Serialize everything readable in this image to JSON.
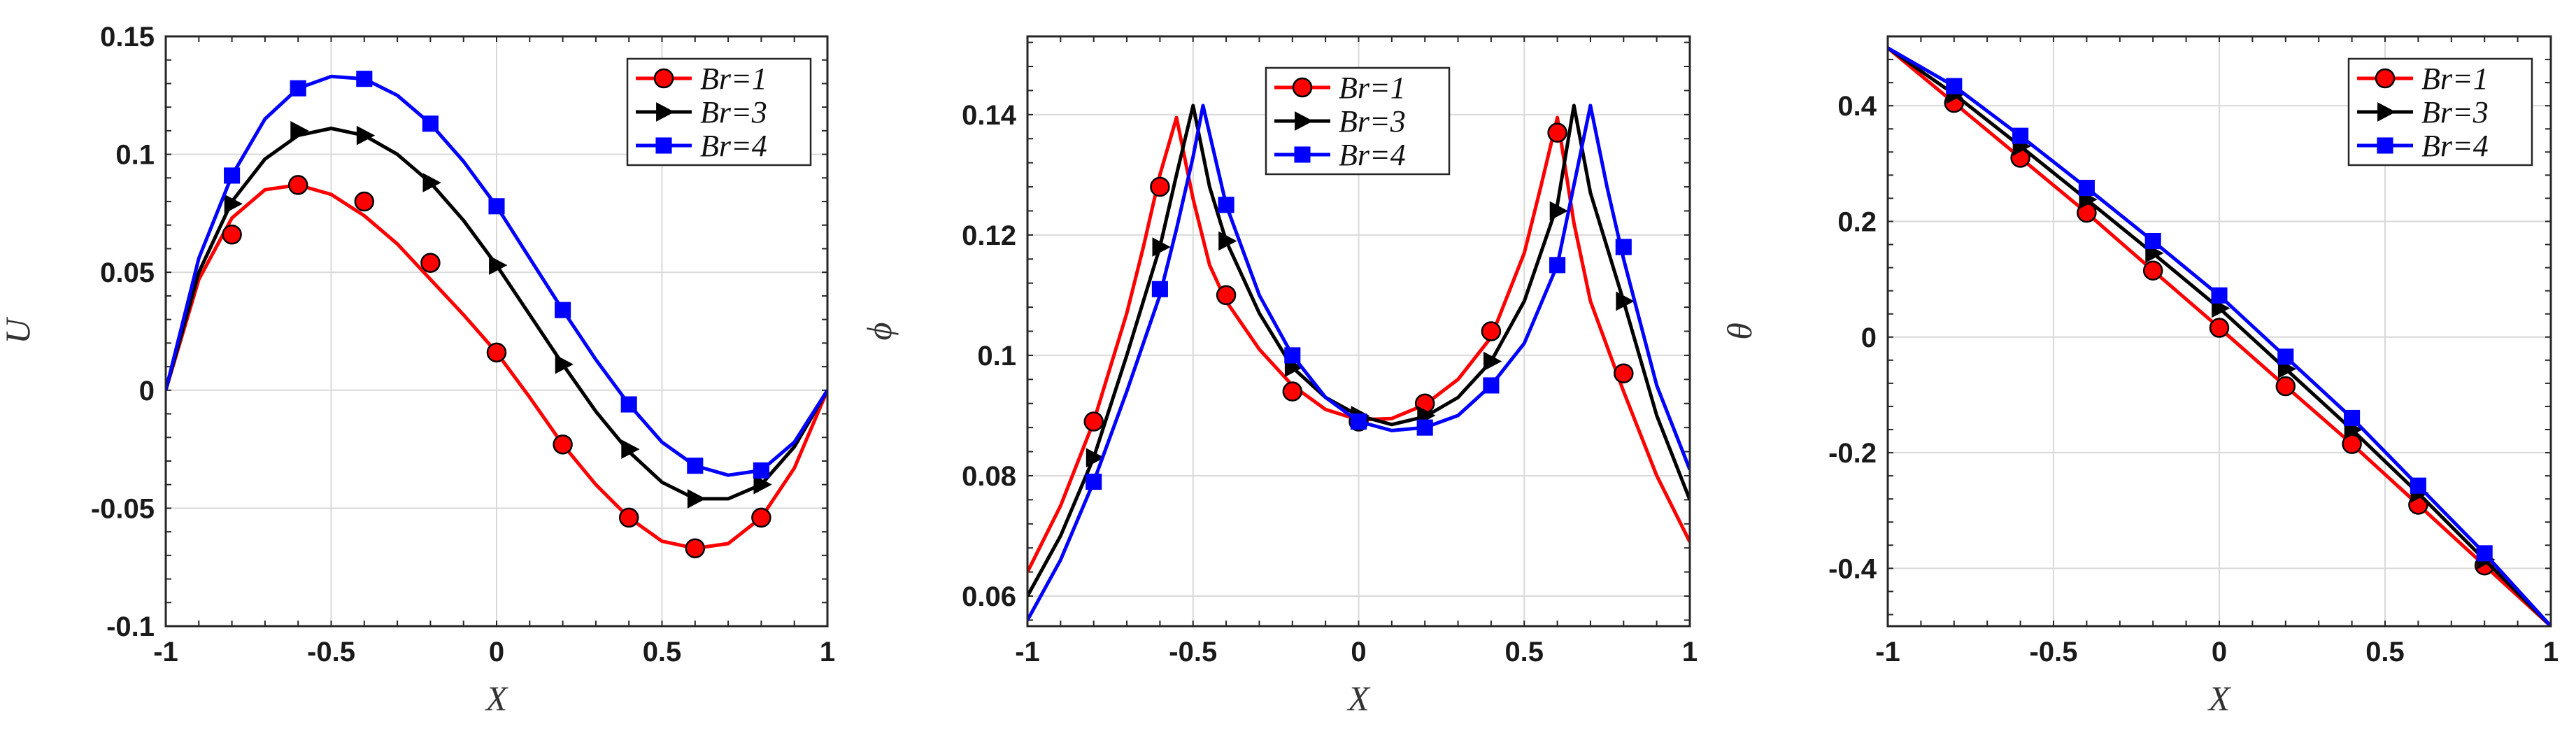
{
  "colors": {
    "Br1": "#ff0000",
    "Br3": "#000000",
    "Br4": "#0000ff"
  },
  "chart_data": [
    {
      "type": "line",
      "xlabel": "X",
      "ylabel": "U",
      "xlim": [
        -1,
        1
      ],
      "ylim": [
        -0.1,
        0.15
      ],
      "xticks": [
        -1,
        -0.5,
        0,
        0.5,
        1
      ],
      "xtick_labels": [
        "-1",
        "-0.5",
        "0",
        "0.5",
        "1"
      ],
      "yticks": [
        -0.1,
        -0.05,
        0,
        0.05,
        0.1,
        0.15
      ],
      "ytick_labels": [
        "-0.1",
        "-0.05",
        "0",
        "0.05",
        "0.1",
        "0.15"
      ],
      "grid": true,
      "legend_position": "top-right",
      "series": [
        {
          "name": "Br=1",
          "marker": "circle",
          "color": "#ff0000",
          "line_x": [
            -1,
            -0.9,
            -0.8,
            -0.7,
            -0.6,
            -0.5,
            -0.4,
            -0.3,
            -0.2,
            -0.1,
            0,
            0.1,
            0.2,
            0.3,
            0.4,
            0.5,
            0.6,
            0.7,
            0.8,
            0.9,
            1
          ],
          "line_y": [
            0,
            0.047,
            0.073,
            0.085,
            0.087,
            0.083,
            0.074,
            0.062,
            0.047,
            0.032,
            0.016,
            -0.003,
            -0.023,
            -0.04,
            -0.054,
            -0.064,
            -0.067,
            -0.065,
            -0.054,
            -0.033,
            0
          ],
          "marker_x": [
            -0.8,
            -0.6,
            -0.4,
            -0.2,
            0,
            0.2,
            0.4,
            0.6,
            0.8
          ],
          "marker_y": [
            0.066,
            0.087,
            0.08,
            0.054,
            0.016,
            -0.023,
            -0.054,
            -0.067,
            -0.054
          ]
        },
        {
          "name": "Br=3",
          "marker": "triangle-right",
          "color": "#000000",
          "line_x": [
            -1,
            -0.9,
            -0.8,
            -0.7,
            -0.6,
            -0.5,
            -0.4,
            -0.3,
            -0.2,
            -0.1,
            0,
            0.1,
            0.2,
            0.3,
            0.4,
            0.5,
            0.6,
            0.7,
            0.8,
            0.9,
            1
          ],
          "line_y": [
            0,
            0.05,
            0.08,
            0.098,
            0.108,
            0.111,
            0.108,
            0.1,
            0.088,
            0.072,
            0.053,
            0.032,
            0.011,
            -0.009,
            -0.026,
            -0.039,
            -0.046,
            -0.046,
            -0.04,
            -0.024,
            0
          ],
          "marker_x": [
            -0.8,
            -0.6,
            -0.4,
            -0.2,
            0,
            0.2,
            0.4,
            0.6,
            0.8
          ],
          "marker_y": [
            0.079,
            0.11,
            0.108,
            0.088,
            0.053,
            0.011,
            -0.025,
            -0.046,
            -0.04
          ]
        },
        {
          "name": "Br=4",
          "marker": "square",
          "color": "#0000ff",
          "line_x": [
            -1,
            -0.9,
            -0.8,
            -0.7,
            -0.6,
            -0.5,
            -0.4,
            -0.3,
            -0.2,
            -0.1,
            0,
            0.1,
            0.2,
            0.3,
            0.4,
            0.5,
            0.6,
            0.7,
            0.8,
            0.9,
            1
          ],
          "line_y": [
            0,
            0.056,
            0.091,
            0.115,
            0.128,
            0.133,
            0.132,
            0.125,
            0.113,
            0.097,
            0.078,
            0.056,
            0.034,
            0.013,
            -0.006,
            -0.022,
            -0.032,
            -0.036,
            -0.034,
            -0.022,
            0
          ],
          "marker_x": [
            -0.8,
            -0.6,
            -0.4,
            -0.2,
            0,
            0.2,
            0.4,
            0.6,
            0.8
          ],
          "marker_y": [
            0.091,
            0.128,
            0.132,
            0.113,
            0.078,
            0.034,
            -0.006,
            -0.032,
            -0.034
          ]
        }
      ]
    },
    {
      "type": "line",
      "xlabel": "X",
      "ylabel": "ϕ",
      "xlim": [
        -1,
        1
      ],
      "ylim": [
        0.055,
        0.153
      ],
      "xticks": [
        -1,
        -0.5,
        0,
        0.5,
        1
      ],
      "xtick_labels": [
        "-1",
        "-0.5",
        "0",
        "0.5",
        "1"
      ],
      "yticks": [
        0.06,
        0.08,
        0.1,
        0.12,
        0.14
      ],
      "ytick_labels": [
        "0.06",
        "0.08",
        "0.1",
        "0.12",
        "0.14"
      ],
      "grid": true,
      "legend_position": "top-center",
      "series": [
        {
          "name": "Br=1",
          "marker": "circle",
          "color": "#ff0000",
          "line_x": [
            -1,
            -0.9,
            -0.8,
            -0.7,
            -0.65,
            -0.6,
            -0.55,
            -0.5,
            -0.45,
            -0.4,
            -0.3,
            -0.2,
            -0.1,
            0,
            0.1,
            0.2,
            0.3,
            0.4,
            0.5,
            0.55,
            0.6,
            0.65,
            0.7,
            0.8,
            0.9,
            1
          ],
          "line_y": [
            0.064,
            0.075,
            0.089,
            0.107,
            0.118,
            0.13,
            0.1395,
            0.126,
            0.115,
            0.109,
            0.101,
            0.095,
            0.091,
            0.0893,
            0.0895,
            0.0918,
            0.096,
            0.103,
            0.117,
            0.128,
            0.1395,
            0.122,
            0.109,
            0.094,
            0.08,
            0.069
          ],
          "marker_x": [
            -0.8,
            -0.6,
            -0.4,
            -0.2,
            0,
            0.2,
            0.4,
            0.6,
            0.8
          ],
          "marker_y": [
            0.089,
            0.128,
            0.11,
            0.094,
            0.089,
            0.092,
            0.104,
            0.137,
            0.097
          ]
        },
        {
          "name": "Br=3",
          "marker": "triangle-right",
          "color": "#000000",
          "line_x": [
            -1,
            -0.9,
            -0.8,
            -0.7,
            -0.6,
            -0.55,
            -0.5,
            -0.45,
            -0.4,
            -0.3,
            -0.2,
            -0.1,
            0,
            0.1,
            0.2,
            0.3,
            0.4,
            0.5,
            0.6,
            0.65,
            0.7,
            0.8,
            0.9,
            1
          ],
          "line_y": [
            0.06,
            0.07,
            0.083,
            0.1,
            0.118,
            0.13,
            0.1415,
            0.128,
            0.119,
            0.107,
            0.098,
            0.093,
            0.09,
            0.0885,
            0.0898,
            0.093,
            0.099,
            0.109,
            0.125,
            0.1415,
            0.127,
            0.109,
            0.09,
            0.076
          ],
          "marker_x": [
            -0.8,
            -0.6,
            -0.4,
            -0.2,
            0,
            0.2,
            0.4,
            0.6,
            0.8
          ],
          "marker_y": [
            0.083,
            0.118,
            0.119,
            0.098,
            0.09,
            0.09,
            0.099,
            0.124,
            0.109
          ]
        },
        {
          "name": "Br=4",
          "marker": "square",
          "color": "#0000ff",
          "line_x": [
            -1,
            -0.9,
            -0.8,
            -0.7,
            -0.6,
            -0.55,
            -0.5,
            -0.47,
            -0.4,
            -0.3,
            -0.2,
            -0.1,
            0,
            0.1,
            0.2,
            0.3,
            0.4,
            0.5,
            0.6,
            0.7,
            0.75,
            0.8,
            0.9,
            1
          ],
          "line_y": [
            0.056,
            0.066,
            0.079,
            0.094,
            0.11,
            0.121,
            0.133,
            0.1415,
            0.125,
            0.11,
            0.1,
            0.093,
            0.089,
            0.0875,
            0.088,
            0.09,
            0.095,
            0.102,
            0.115,
            0.1415,
            0.128,
            0.116,
            0.095,
            0.081
          ],
          "marker_x": [
            -0.8,
            -0.6,
            -0.4,
            -0.2,
            0,
            0.2,
            0.4,
            0.6,
            0.8
          ],
          "marker_y": [
            0.079,
            0.111,
            0.125,
            0.1,
            0.089,
            0.088,
            0.095,
            0.115,
            0.118
          ]
        }
      ]
    },
    {
      "type": "line",
      "xlabel": "X",
      "ylabel": "θ",
      "xlim": [
        -1,
        1
      ],
      "ylim": [
        -0.5,
        0.52
      ],
      "xticks": [
        -1,
        -0.5,
        0,
        0.5,
        1
      ],
      "xtick_labels": [
        "-1",
        "-0.5",
        "0",
        "0.5",
        "1"
      ],
      "yticks": [
        -0.4,
        -0.2,
        0,
        0.2,
        0.4
      ],
      "ytick_labels": [
        "-0.4",
        "-0.2",
        "0",
        "0.2",
        "0.4"
      ],
      "grid": true,
      "legend_position": "top-right",
      "series": [
        {
          "name": "Br=1",
          "marker": "circle",
          "color": "#ff0000",
          "line_x": [
            -1,
            -0.8,
            -0.6,
            -0.4,
            -0.2,
            0,
            0.2,
            0.4,
            0.6,
            0.8,
            1
          ],
          "line_y": [
            0.5,
            0.405,
            0.31,
            0.215,
            0.115,
            0.016,
            -0.085,
            -0.185,
            -0.29,
            -0.395,
            -0.5
          ],
          "marker_x": [
            -0.8,
            -0.6,
            -0.4,
            -0.2,
            0,
            0.2,
            0.4,
            0.6,
            0.8
          ],
          "marker_y": [
            0.405,
            0.31,
            0.215,
            0.115,
            0.016,
            -0.085,
            -0.185,
            -0.29,
            -0.395
          ]
        },
        {
          "name": "Br=3",
          "marker": "triangle-right",
          "color": "#000000",
          "line_x": [
            -1,
            -0.8,
            -0.6,
            -0.4,
            -0.2,
            0,
            0.2,
            0.4,
            0.6,
            0.8,
            1
          ],
          "line_y": [
            0.5,
            0.42,
            0.33,
            0.238,
            0.145,
            0.05,
            -0.055,
            -0.16,
            -0.27,
            -0.385,
            -0.5
          ],
          "marker_x": [
            -0.8,
            -0.6,
            -0.4,
            -0.2,
            0,
            0.2,
            0.4,
            0.6,
            0.8
          ],
          "marker_y": [
            0.42,
            0.33,
            0.238,
            0.145,
            0.05,
            -0.055,
            -0.16,
            -0.27,
            -0.385
          ]
        },
        {
          "name": "Br=4",
          "marker": "square",
          "color": "#0000ff",
          "line_x": [
            -1,
            -0.8,
            -0.6,
            -0.4,
            -0.2,
            0,
            0.2,
            0.4,
            0.6,
            0.8,
            1
          ],
          "line_y": [
            0.5,
            0.434,
            0.348,
            0.258,
            0.166,
            0.072,
            -0.034,
            -0.14,
            -0.257,
            -0.374,
            -0.5
          ],
          "marker_x": [
            -0.8,
            -0.6,
            -0.4,
            -0.2,
            0,
            0.2,
            0.4,
            0.6,
            0.8
          ],
          "marker_y": [
            0.434,
            0.348,
            0.258,
            0.166,
            0.072,
            -0.034,
            -0.14,
            -0.257,
            -0.374
          ]
        }
      ]
    }
  ]
}
